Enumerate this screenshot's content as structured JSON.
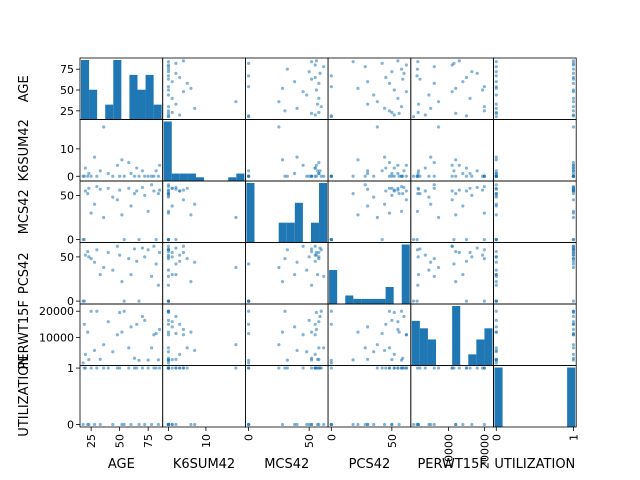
{
  "chart_data": {
    "type": "scatter-matrix",
    "variables": [
      "AGE",
      "K6SUM42",
      "MCS42",
      "PCS42",
      "PERWT15F",
      "UTILIZATION"
    ],
    "axis_labels": {
      "rows": [
        "AGE",
        "K6SUM42",
        "MCS42",
        "PCS42",
        "PERWT15F",
        "UTILIZATION"
      ],
      "columns": [
        "AGE",
        "K6SUM42",
        "MCS42",
        "PCS42",
        "PERWT15F",
        "UTILIZATION"
      ]
    },
    "ranges": {
      "AGE": [
        17,
        86
      ],
      "K6SUM42": [
        -1,
        20
      ],
      "MCS42": [
        -1,
        64
      ],
      "PCS42": [
        -1,
        64
      ],
      "PERWT15F": [
        0,
        22000
      ],
      "UTILIZATION": [
        -0.01,
        1.01
      ]
    },
    "ticks": {
      "AGE": {
        "values": [
          25,
          50,
          75
        ],
        "labels": [
          "25",
          "50",
          "75"
        ]
      },
      "K6SUM42": {
        "values": [
          0,
          10
        ],
        "labels": [
          "0",
          "10"
        ]
      },
      "MCS42": {
        "values": [
          0,
          50
        ],
        "labels": [
          "0",
          "50"
        ]
      },
      "PCS42": {
        "values": [
          0,
          50
        ],
        "labels": [
          "0",
          "50"
        ]
      },
      "PERWT15F": {
        "values": [
          10000,
          20000
        ],
        "labels": [
          "10000",
          "20000"
        ]
      },
      "UTILIZATION": {
        "values": [
          0,
          1
        ],
        "labels": [
          "0",
          "1"
        ]
      }
    },
    "histograms": {
      "AGE": [
        8,
        4,
        0,
        2,
        8,
        0,
        6,
        4,
        6,
        2
      ],
      "K6SUM42": [
        8,
        1,
        1,
        1,
        0.5,
        0,
        0,
        0,
        0.5,
        1
      ],
      "MCS42": [
        6,
        0,
        0,
        0,
        2,
        2,
        4,
        0,
        2,
        6
      ],
      "PCS42": [
        4,
        0,
        1,
        0.6,
        0.6,
        0.6,
        0.6,
        2,
        0,
        7
      ],
      "PERWT15F": [
        6,
        5,
        3.5,
        0,
        0,
        8,
        0,
        1.5,
        3.5,
        5
      ],
      "UTILIZATION": [
        5,
        0,
        0,
        0,
        0,
        0,
        0,
        0,
        0,
        5
      ]
    },
    "records": [
      {
        "AGE": 18,
        "K6SUM42": 0,
        "MCS42": 0,
        "PCS42": 0,
        "PERWT15F": 200,
        "UTILIZATION": 0
      },
      {
        "AGE": 19,
        "K6SUM42": 0,
        "MCS42": 0,
        "PCS42": 0,
        "PERWT15F": 15000,
        "UTILIZATION": 1
      },
      {
        "AGE": 20,
        "K6SUM42": 3,
        "MCS42": 55,
        "PCS42": 52,
        "PERWT15F": 3500,
        "UTILIZATION": 1
      },
      {
        "AGE": 22,
        "K6SUM42": 0,
        "MCS42": 52,
        "PCS42": 56,
        "PERWT15F": 12000,
        "UTILIZATION": 0
      },
      {
        "AGE": 23,
        "K6SUM42": 1,
        "MCS42": 58,
        "PCS42": 50,
        "PERWT15F": 1500,
        "UTILIZATION": 0
      },
      {
        "AGE": 25,
        "K6SUM42": 0,
        "MCS42": 30,
        "PCS42": 48,
        "PERWT15F": 20000,
        "UTILIZATION": 1
      },
      {
        "AGE": 28,
        "K6SUM42": 7,
        "MCS42": 40,
        "PCS42": 44,
        "PERWT15F": 5000,
        "UTILIZATION": 0
      },
      {
        "AGE": 30,
        "K6SUM42": 0,
        "MCS42": 60,
        "PCS42": 58,
        "PERWT15F": 20000,
        "UTILIZATION": 1
      },
      {
        "AGE": 33,
        "K6SUM42": 2,
        "MCS42": 57,
        "PCS42": 30,
        "PERWT15F": 1600,
        "UTILIZATION": 0
      },
      {
        "AGE": 36,
        "K6SUM42": 18,
        "MCS42": 25,
        "PCS42": 38,
        "PERWT15F": 7200,
        "UTILIZATION": 1
      },
      {
        "AGE": 40,
        "K6SUM42": 1,
        "MCS42": 58,
        "PCS42": 55,
        "PERWT15F": 16000,
        "UTILIZATION": 1
      },
      {
        "AGE": 44,
        "K6SUM42": 0,
        "MCS42": 48,
        "PCS42": 35,
        "PERWT15F": 4500,
        "UTILIZATION": 0
      },
      {
        "AGE": 48,
        "K6SUM42": 4,
        "MCS42": 45,
        "PCS42": 62,
        "PERWT15F": 11000,
        "UTILIZATION": 1
      },
      {
        "AGE": 50,
        "K6SUM42": 0,
        "MCS42": 56,
        "PCS42": 52,
        "PERWT15F": 19500,
        "UTILIZATION": 1
      },
      {
        "AGE": 52,
        "K6SUM42": 6,
        "MCS42": 28,
        "PCS42": 22,
        "PERWT15F": 12000,
        "UTILIZATION": 0
      },
      {
        "AGE": 54,
        "K6SUM42": 0,
        "MCS42": 0,
        "PCS42": 0,
        "PERWT15F": 20000,
        "UTILIZATION": 0
      },
      {
        "AGE": 58,
        "K6SUM42": 5,
        "MCS42": 58,
        "PCS42": 48,
        "PERWT15F": 6000,
        "UTILIZATION": 1
      },
      {
        "AGE": 60,
        "K6SUM42": 1,
        "MCS42": 38,
        "PCS42": 30,
        "PERWT15F": 14000,
        "UTILIZATION": 0
      },
      {
        "AGE": 63,
        "K6SUM42": 0,
        "MCS42": 52,
        "PCS42": 59,
        "PERWT15F": 2000,
        "UTILIZATION": 1
      },
      {
        "AGE": 65,
        "K6SUM42": 3,
        "MCS42": 55,
        "PCS42": 45,
        "PERWT15F": 15000,
        "UTILIZATION": 1
      },
      {
        "AGE": 67,
        "K6SUM42": 0,
        "MCS42": 0,
        "PCS42": 0,
        "PERWT15F": 1200,
        "UTILIZATION": 0
      },
      {
        "AGE": 70,
        "K6SUM42": 2,
        "MCS42": 59,
        "PCS42": 60,
        "PERWT15F": 18000,
        "UTILIZATION": 1
      },
      {
        "AGE": 72,
        "K6SUM42": 0,
        "MCS42": 50,
        "PCS42": 50,
        "PERWT15F": 16500,
        "UTILIZATION": 0
      },
      {
        "AGE": 75,
        "K6SUM42": 0,
        "MCS42": 32,
        "PCS42": 58,
        "PERWT15F": 1300,
        "UTILIZATION": 1
      },
      {
        "AGE": 78,
        "K6SUM42": 0,
        "MCS42": 62,
        "PCS42": 28,
        "PERWT15F": 6000,
        "UTILIZATION": 0
      },
      {
        "AGE": 80,
        "K6SUM42": 0,
        "MCS42": 55,
        "PCS42": 62,
        "PERWT15F": 11000,
        "UTILIZATION": 1
      },
      {
        "AGE": 82,
        "K6SUM42": 2,
        "MCS42": 0,
        "PCS42": 42,
        "PERWT15F": 11500,
        "UTILIZATION": 1
      },
      {
        "AGE": 84,
        "K6SUM42": 0,
        "MCS42": 52,
        "PCS42": 18,
        "PERWT15F": 1400,
        "UTILIZATION": 0
      },
      {
        "AGE": 85,
        "K6SUM42": 4,
        "MCS42": 56,
        "PCS42": 55,
        "PERWT15F": 13000,
        "UTILIZATION": 1
      }
    ],
    "colors": {
      "points": "#1f77b4",
      "bars": "#1f77b4",
      "frame": "#000000"
    }
  }
}
